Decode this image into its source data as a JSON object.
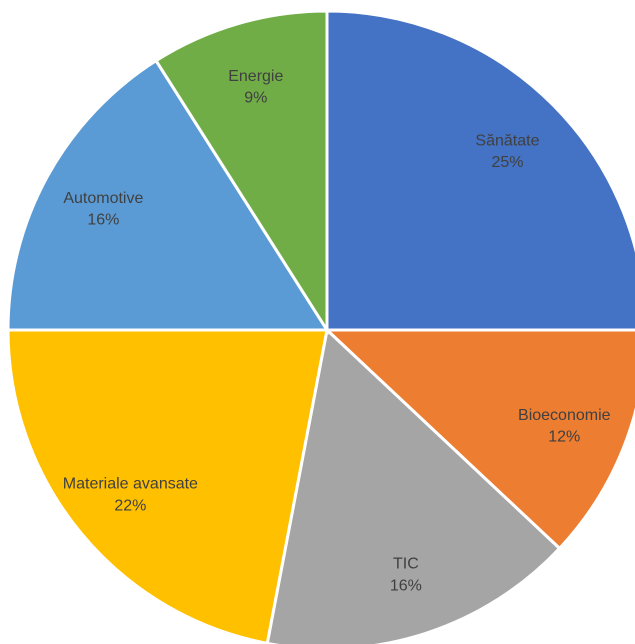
{
  "chart_data": {
    "type": "pie",
    "categories": [
      "Sănătate",
      "Bioeconomie",
      "TIC",
      "Materiale avansate",
      "Automotive",
      "Energie"
    ],
    "values": [
      25,
      12,
      16,
      22,
      16,
      9
    ],
    "value_labels": [
      "25%",
      "12%",
      "16%",
      "22%",
      "16%",
      "9%"
    ],
    "colors": [
      "#4472c4",
      "#ed7d31",
      "#a5a5a5",
      "#ffc000",
      "#5b9bd5",
      "#70ad47"
    ]
  }
}
